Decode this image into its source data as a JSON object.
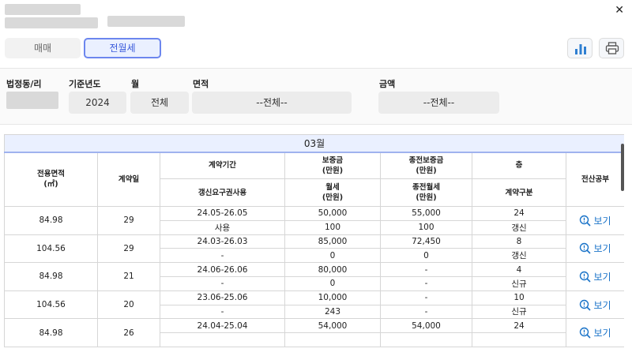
{
  "filters_tabs": {
    "sale": "매매",
    "lease": "전월세"
  },
  "filters": {
    "region_label": "법정동/리",
    "year_label": "기준년도",
    "year_value": "2024",
    "month_label": "월",
    "month_value": "전체",
    "area_label": "면적",
    "area_value": "--전체--",
    "amount_label": "금액",
    "amount_value": "--전체--"
  },
  "table": {
    "month_header": "03월",
    "headers": {
      "area": "전용면적\n(㎡)",
      "date": "계약일",
      "period": "계약기간",
      "deposit": "보증금\n(만원)",
      "prev_deposit": "종전보증금\n(만원)",
      "floor": "층",
      "record": "전산공부",
      "renewal": "갱신요구권사용",
      "monthly": "월세\n(만원)",
      "prev_monthly": "종전월세\n(만원)",
      "contract_type": "계약구분"
    },
    "view_label": "보기",
    "rows": [
      {
        "area": "84.98",
        "date": "29",
        "period": "24.05-26.05",
        "deposit": "50,000",
        "prev_deposit": "55,000",
        "floor": "24",
        "renewal": "사용",
        "monthly": "100",
        "prev_monthly": "100",
        "type": "갱신"
      },
      {
        "area": "104.56",
        "date": "29",
        "period": "24.03-26.03",
        "deposit": "85,000",
        "prev_deposit": "72,450",
        "floor": "8",
        "renewal": "-",
        "monthly": "0",
        "prev_monthly": "0",
        "type": "갱신"
      },
      {
        "area": "84.98",
        "date": "21",
        "period": "24.06-26.06",
        "deposit": "80,000",
        "prev_deposit": "-",
        "floor": "4",
        "renewal": "-",
        "monthly": "0",
        "prev_monthly": "-",
        "type": "신규"
      },
      {
        "area": "104.56",
        "date": "20",
        "period": "23.06-25.06",
        "deposit": "10,000",
        "prev_deposit": "-",
        "floor": "10",
        "renewal": "-",
        "monthly": "243",
        "prev_monthly": "-",
        "type": "신규"
      },
      {
        "area": "84.98",
        "date": "26",
        "period": "24.04-25.04",
        "deposit": "54,000",
        "prev_deposit": "54,000",
        "floor": "24",
        "renewal": "",
        "monthly": "",
        "prev_monthly": "",
        "type": ""
      }
    ]
  },
  "colors": {
    "accent": "#3b5bdb",
    "link": "#1a73c8",
    "month_bg": "#eaf0ff"
  },
  "icons": {
    "close": "close-icon",
    "chart": "bar-chart-icon",
    "print": "printer-icon",
    "view": "search-info-icon"
  }
}
